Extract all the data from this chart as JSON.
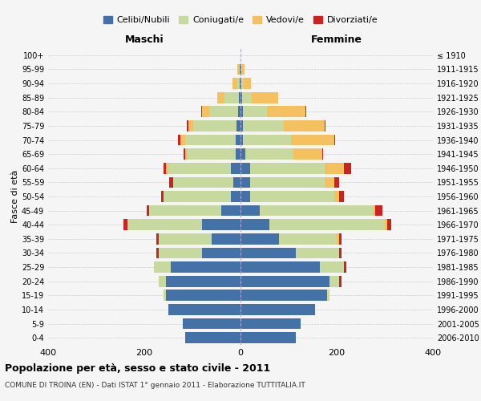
{
  "age_groups": [
    "0-4",
    "5-9",
    "10-14",
    "15-19",
    "20-24",
    "25-29",
    "30-34",
    "35-39",
    "40-44",
    "45-49",
    "50-54",
    "55-59",
    "60-64",
    "65-69",
    "70-74",
    "75-79",
    "80-84",
    "85-89",
    "90-94",
    "95-99",
    "100+"
  ],
  "birth_years": [
    "2006-2010",
    "2001-2005",
    "1996-2000",
    "1991-1995",
    "1986-1990",
    "1981-1985",
    "1976-1980",
    "1971-1975",
    "1966-1970",
    "1961-1965",
    "1956-1960",
    "1951-1955",
    "1946-1950",
    "1941-1945",
    "1936-1940",
    "1931-1935",
    "1926-1930",
    "1921-1925",
    "1916-1920",
    "1911-1915",
    "≤ 1910"
  ],
  "males": {
    "celibi": [
      115,
      120,
      150,
      155,
      155,
      145,
      80,
      60,
      80,
      40,
      20,
      15,
      20,
      10,
      10,
      8,
      5,
      3,
      2,
      1,
      0
    ],
    "coniugati": [
      0,
      0,
      0,
      5,
      15,
      35,
      90,
      110,
      155,
      150,
      140,
      125,
      130,
      100,
      105,
      90,
      60,
      30,
      5,
      2,
      0
    ],
    "vedovi": [
      0,
      0,
      0,
      0,
      0,
      0,
      0,
      0,
      0,
      0,
      0,
      0,
      5,
      5,
      10,
      10,
      15,
      15,
      10,
      3,
      0
    ],
    "divorziati": [
      0,
      0,
      0,
      0,
      0,
      0,
      5,
      5,
      8,
      5,
      5,
      8,
      5,
      3,
      5,
      3,
      2,
      0,
      0,
      0,
      0
    ]
  },
  "females": {
    "nubili": [
      115,
      125,
      155,
      180,
      185,
      165,
      115,
      80,
      60,
      40,
      20,
      20,
      20,
      10,
      5,
      5,
      5,
      3,
      2,
      1,
      0
    ],
    "coniugate": [
      0,
      0,
      0,
      5,
      20,
      50,
      90,
      120,
      240,
      235,
      175,
      155,
      155,
      100,
      100,
      85,
      50,
      20,
      5,
      3,
      0
    ],
    "vedove": [
      0,
      0,
      0,
      0,
      0,
      0,
      0,
      5,
      5,
      5,
      10,
      20,
      40,
      60,
      90,
      85,
      80,
      55,
      15,
      5,
      0
    ],
    "divorziate": [
      0,
      0,
      0,
      0,
      5,
      5,
      5,
      5,
      8,
      15,
      10,
      10,
      15,
      2,
      2,
      2,
      2,
      0,
      0,
      0,
      0
    ]
  },
  "colors": {
    "celibi": "#4472a8",
    "coniugati": "#c8d9a0",
    "vedovi": "#f5c060",
    "divorziati": "#cc2222"
  },
  "xlim": 400,
  "title": "Popolazione per età, sesso e stato civile - 2011",
  "subtitle": "COMUNE DI TROINA (EN) - Dati ISTAT 1° gennaio 2011 - Elaborazione TUTTITALIA.IT",
  "ylabel_left": "Fasce di età",
  "xlabel_left": "Maschi",
  "xlabel_right": "Femmine",
  "legend_labels": [
    "Celibi/Nubili",
    "Coniugati/e",
    "Vedovi/e",
    "Divorziati/e"
  ],
  "bg_color": "#f5f5f5",
  "grid_color": "#cccccc"
}
